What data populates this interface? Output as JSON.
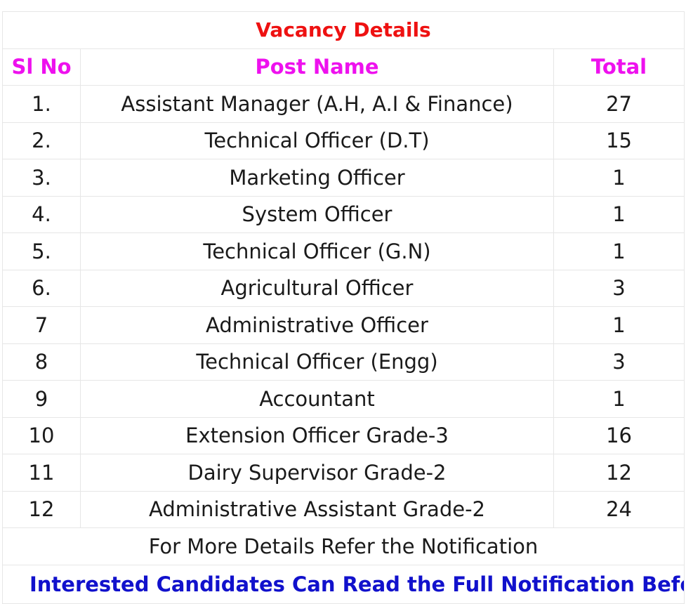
{
  "table": {
    "title": "Vacancy Details",
    "headers": {
      "sl_no": "Sl No",
      "post_name": "Post Name",
      "total": "Total"
    },
    "rows": [
      {
        "sl": "1.",
        "post": "Assistant Manager (A.H, A.I & Finance)",
        "total": "27"
      },
      {
        "sl": "2.",
        "post": "Technical Officer (D.T)",
        "total": "15"
      },
      {
        "sl": "3.",
        "post": "Marketing Officer",
        "total": "1"
      },
      {
        "sl": "4.",
        "post": "System Officer",
        "total": "1"
      },
      {
        "sl": "5.",
        "post": "Technical Officer (G.N)",
        "total": "1"
      },
      {
        "sl": "6.",
        "post": "Agricultural Officer",
        "total": "3"
      },
      {
        "sl": "7",
        "post": "Administrative Officer",
        "total": "1"
      },
      {
        "sl": "8",
        "post": "Technical Officer (Engg)",
        "total": "3"
      },
      {
        "sl": "9",
        "post": "Accountant",
        "total": "1"
      },
      {
        "sl": "10",
        "post": "Extension Officer Grade-3",
        "total": "16"
      },
      {
        "sl": "11",
        "post": "Dairy Supervisor Grade-2",
        "total": "12"
      },
      {
        "sl": "12",
        "post": "Administrative Assistant Grade-2",
        "total": "24"
      }
    ],
    "footer": "For More Details Refer the Notification",
    "cut_off_line": "Interested Candidates Can Read the Full Notification Before"
  },
  "colors": {
    "title": "#ee1111",
    "headers": "#ee11ee",
    "cut_off_line": "#1111cc",
    "border": "#e6e6e6"
  }
}
